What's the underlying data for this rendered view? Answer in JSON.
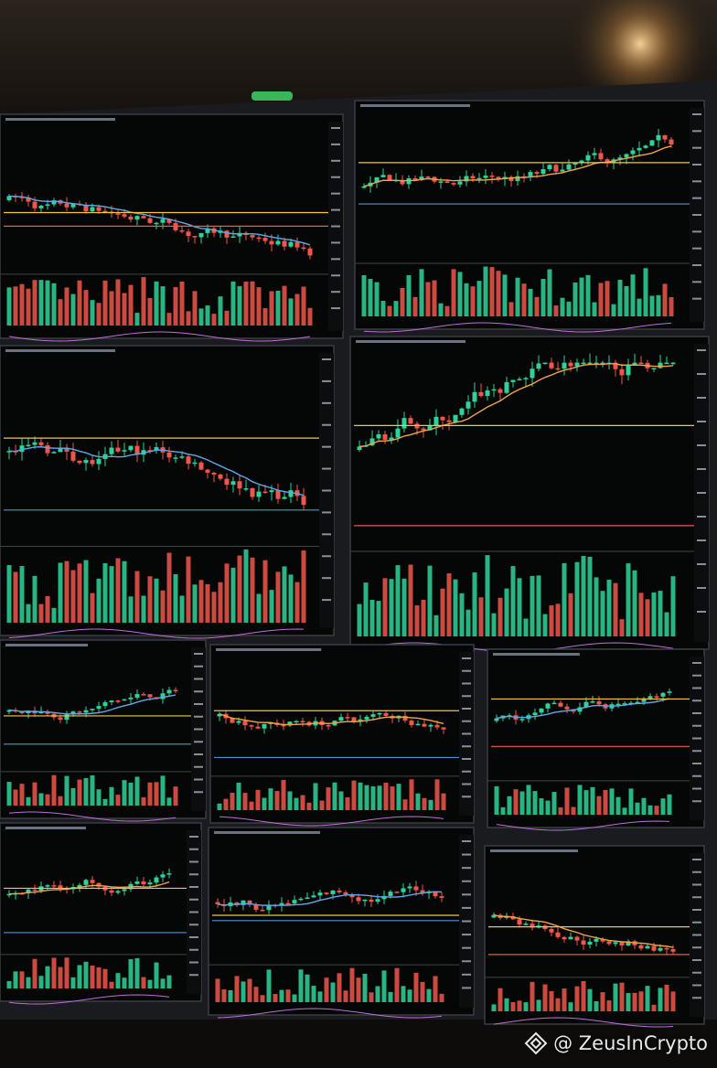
{
  "watermark": "@ ZeusInCrypto"
}
